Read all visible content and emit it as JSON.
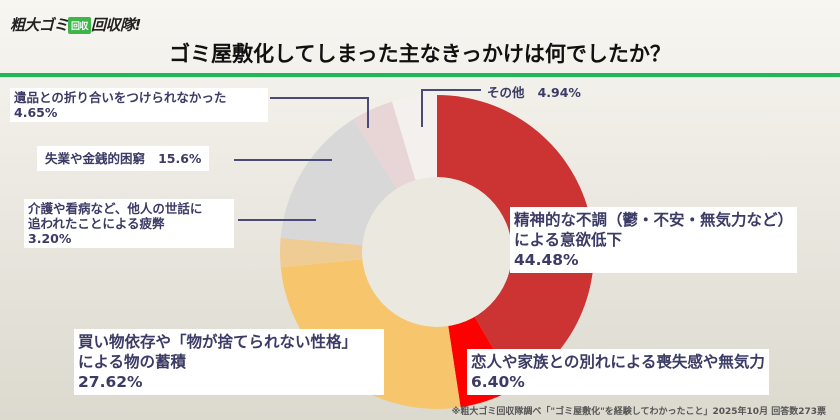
{
  "logo": {
    "text": "粗大ゴミ",
    "badge": "回収",
    "text2": "回収隊!"
  },
  "chart_data": {
    "type": "pie",
    "variant": "donut",
    "title": "ゴミ屋敷化してしまった主なきっかけは何でしたか？",
    "slices": [
      {
        "label": "精神的な不調（鬱・不安・無気力など）による意欲低下",
        "value": 44.48,
        "value_text": "44.48%",
        "color": "#cc3333"
      },
      {
        "label": "恋人や家族との別れによる喪失感や無気力",
        "value": 6.4,
        "value_text": "6.40%",
        "color": "#ff0000"
      },
      {
        "label": "買い物依存や「物が捨てられない性格」による物の蓄積",
        "value": 27.62,
        "value_text": "27.62%",
        "color": "#f6c56c"
      },
      {
        "label": "介護や看病など、他人の世話に追われたことによる疲弊",
        "value": 3.2,
        "value_text": "3.20%",
        "color": "#f0cc95"
      },
      {
        "label": "失業や金銭的困窮",
        "value": 15.6,
        "value_text": "15.6%",
        "color": "#d8d8d8"
      },
      {
        "label": "遺品との折り合いをつけられなかった",
        "value": 4.65,
        "value_text": "4.65%",
        "color": "#e8d6d6"
      },
      {
        "label": "その他",
        "value": 4.94,
        "value_text": "4.94%",
        "color": "#f4f0ee"
      }
    ],
    "label_lines": {
      "s0": [
        "精神的な不調（鬱・不安・無気力など）",
        "による意欲低下"
      ],
      "s2": [
        "買い物依存や「物が捨てられない性格」",
        "による物の蓄積"
      ],
      "s3": [
        "介護や看病など、他人の世話に",
        "追われたことによる疲弊"
      ]
    },
    "leader_color": "#4a4a7a",
    "hole_color": "#ebe8e0"
  },
  "footnote": "※粗大ゴミ回収隊調べ「\"ゴミ屋敷化\"を経験してわかったこと」2025年10月 回答数273票"
}
